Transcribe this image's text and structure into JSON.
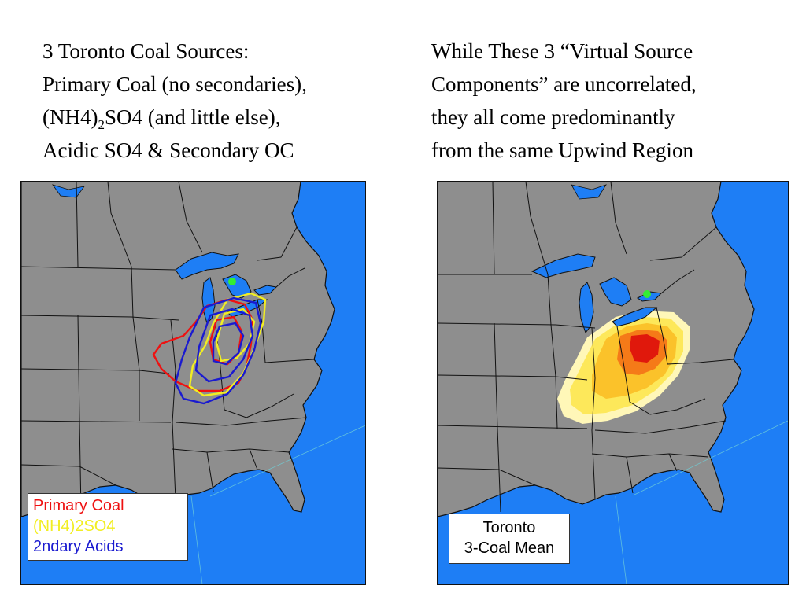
{
  "left_text": {
    "line1": "3 Toronto Coal Sources:",
    "line2": "Primary Coal (no secondaries),",
    "line3_before": "(NH4)",
    "line3_sub": "2",
    "line3_after": "SO4 (and little else),",
    "line4": "Acidic SO4 & Secondary OC"
  },
  "right_text": {
    "line1": "While These 3 “Virtual Source",
    "line2": "Components” are uncorrelated,",
    "line3": "they all come predominantly",
    "line4": "from the same Upwind Region"
  },
  "left_map": {
    "legend": [
      {
        "label": "Primary Coal",
        "color": "#ee1111"
      },
      {
        "label": "(NH4)2SO4",
        "color": "#f2ee22"
      },
      {
        "label": "2ndary Acids",
        "color": "#1a1ad0"
      }
    ]
  },
  "right_map": {
    "legend_line1": "Toronto",
    "legend_line2": "3-Coal Mean"
  },
  "colors": {
    "ocean": "#1e7ef5",
    "land": "#8e8e8e",
    "border_lines": "#111111",
    "receptor_marker": "#33ee33"
  }
}
